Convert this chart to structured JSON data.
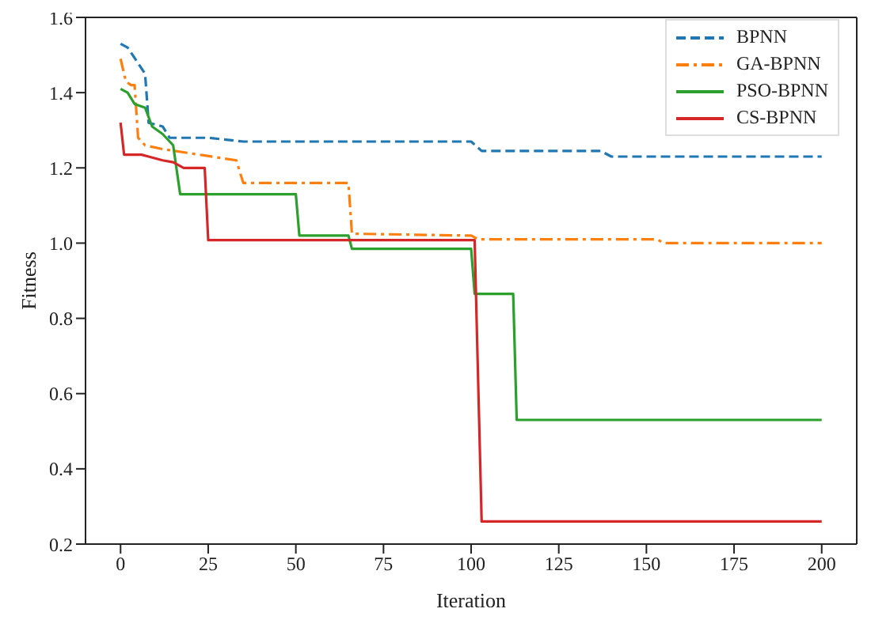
{
  "chart_data": {
    "type": "line",
    "xlabel": "Iteration",
    "ylabel": "Fitness",
    "xlim": [
      -10,
      210
    ],
    "xticks": [
      0,
      25,
      50,
      75,
      100,
      125,
      150,
      175,
      200
    ],
    "ylim": [
      0.2,
      1.6
    ],
    "yticks": [
      {
        "value": 0.2,
        "label": "0.2"
      },
      {
        "value": 0.4,
        "label": "0.4"
      },
      {
        "value": 0.6,
        "label": "0.6"
      },
      {
        "value": 0.8,
        "label": "0.8"
      },
      {
        "value": 1.0,
        "label": "1.0"
      },
      {
        "value": 1.2,
        "label": "1.2"
      },
      {
        "value": 1.4,
        "label": "1.4"
      },
      {
        "value": 1.6,
        "label": "1.6"
      }
    ],
    "legend": "top right",
    "marker": "none",
    "series": [
      {
        "name": "BPNN",
        "color": "#1f77b4",
        "line_style": "dashed",
        "x": [
          0,
          2,
          7,
          8,
          12,
          14,
          25,
          35,
          100,
          103,
          137,
          140,
          200
        ],
        "values": [
          1.53,
          1.52,
          1.45,
          1.32,
          1.31,
          1.28,
          1.28,
          1.27,
          1.27,
          1.245,
          1.245,
          1.23,
          1.23
        ]
      },
      {
        "name": "GA-BPNN",
        "color": "#ff7f0e",
        "line_style": "dashdot",
        "x": [
          0,
          1.5,
          3,
          4,
          5,
          7,
          12,
          19,
          33,
          35,
          65,
          66,
          100,
          102,
          153,
          155,
          200
        ],
        "values": [
          1.49,
          1.43,
          1.42,
          1.42,
          1.28,
          1.26,
          1.25,
          1.24,
          1.22,
          1.16,
          1.16,
          1.025,
          1.02,
          1.01,
          1.01,
          1.0,
          1.0
        ]
      },
      {
        "name": "PSO-BPNN",
        "color": "#2ca02c",
        "line_style": "solid",
        "x": [
          0,
          2,
          4,
          7,
          9,
          12,
          15,
          17,
          50,
          51,
          65,
          66,
          100,
          101,
          112,
          113,
          200
        ],
        "values": [
          1.41,
          1.4,
          1.37,
          1.36,
          1.31,
          1.29,
          1.26,
          1.13,
          1.13,
          1.02,
          1.02,
          0.985,
          0.985,
          0.865,
          0.865,
          0.53,
          0.53
        ]
      },
      {
        "name": "CS-BPNN",
        "color": "#d62728",
        "line_style": "solid",
        "x": [
          0,
          1,
          6,
          8,
          12,
          15,
          18,
          24,
          25,
          101,
          103,
          200
        ],
        "values": [
          1.32,
          1.235,
          1.235,
          1.23,
          1.22,
          1.215,
          1.2,
          1.2,
          1.008,
          1.008,
          0.26,
          0.26
        ]
      }
    ]
  }
}
